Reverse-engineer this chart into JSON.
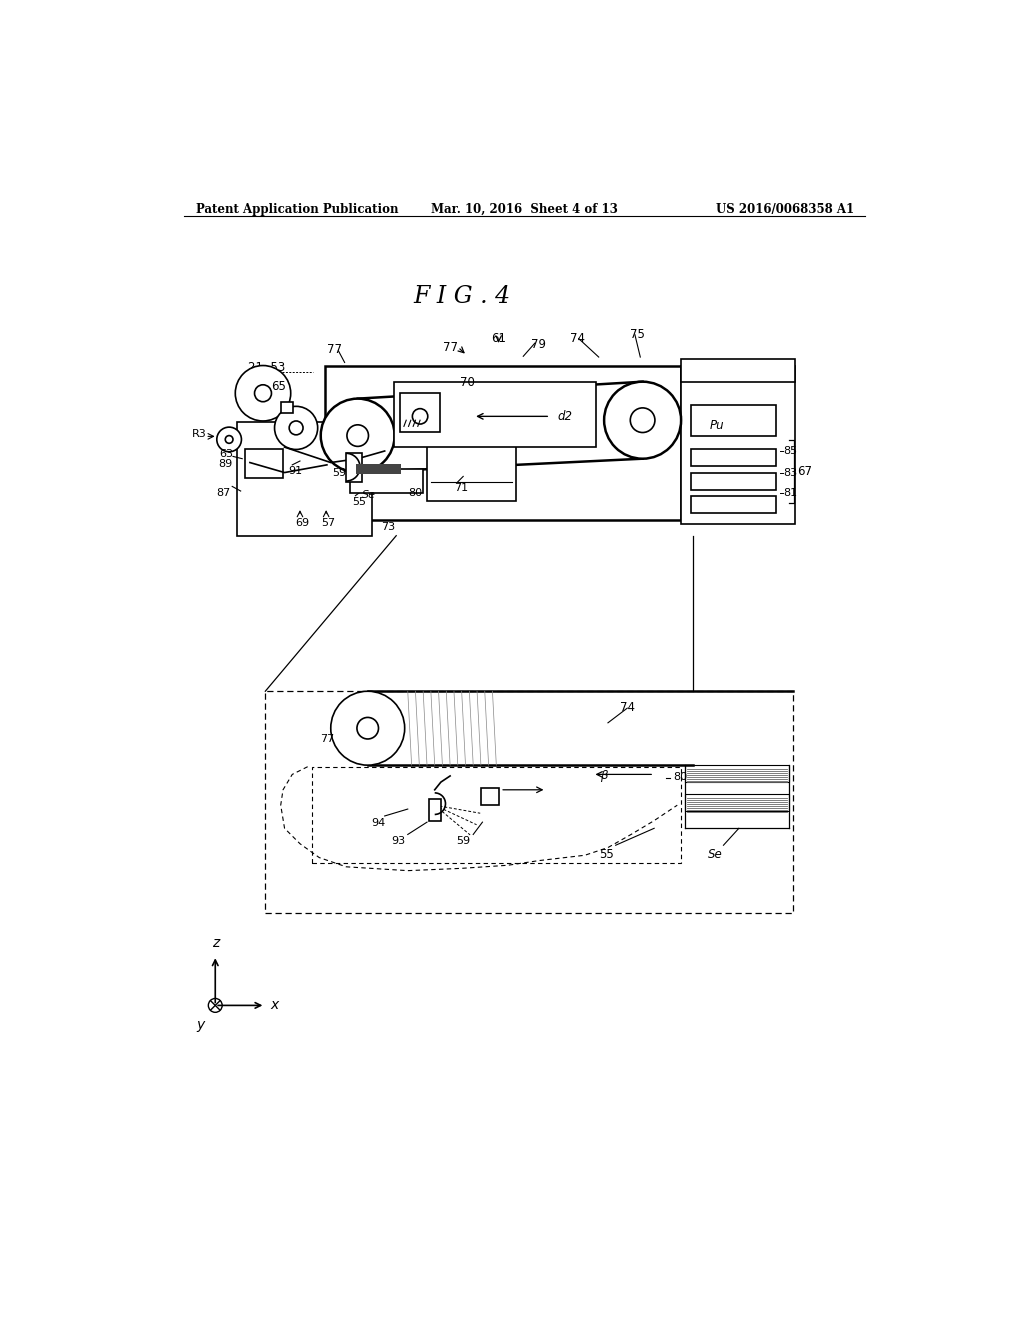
{
  "bg_color": "#ffffff",
  "line_color": "#000000",
  "header_left": "Patent Application Publication",
  "header_center": "Mar. 10, 2016  Sheet 4 of 13",
  "header_right": "US 2016/0068358 A1",
  "fig_title": "F I G . 4"
}
